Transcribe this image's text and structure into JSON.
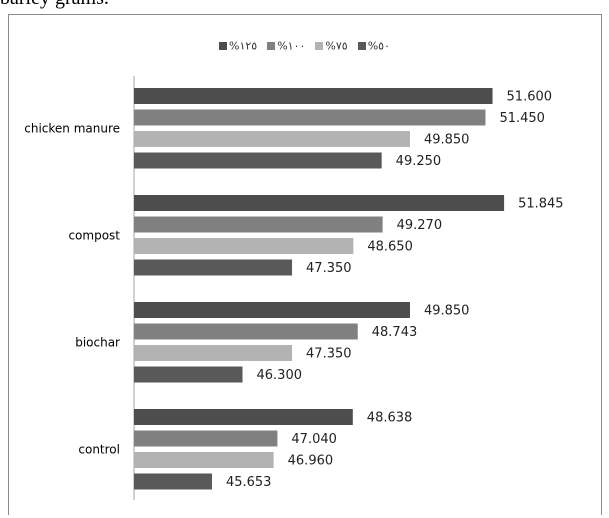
{
  "caption": "barley grams.",
  "chart_data": {
    "type": "bar",
    "orientation": "horizontal",
    "categories": [
      "chicken manure",
      "compost",
      "biochar",
      "control"
    ],
    "series": [
      {
        "name": "%١٢٥",
        "color": "#4d4d4d",
        "values": [
          51.6,
          51.845,
          49.85,
          48.638
        ],
        "labels": [
          "51.600",
          "51.845",
          "49.850",
          "48.638"
        ]
      },
      {
        "name": "%١٠٠",
        "color": "#808080",
        "values": [
          51.45,
          49.27,
          48.743,
          47.04
        ],
        "labels": [
          "51.450",
          "49.270",
          "48.743",
          "47.040"
        ]
      },
      {
        "name": "%٧٥",
        "color": "#b3b3b3",
        "values": [
          49.85,
          48.65,
          47.35,
          46.96
        ],
        "labels": [
          "49.850",
          "48.650",
          "47.350",
          "46.960"
        ]
      },
      {
        "name": "%٥٠",
        "color": "#595959",
        "values": [
          49.25,
          47.35,
          46.3,
          45.653
        ],
        "labels": [
          "49.250",
          "47.350",
          "46.300",
          "45.653"
        ]
      }
    ],
    "xlim": [
      44,
      52.5
    ],
    "legend_position": "top",
    "grid": false,
    "data_labels": true
  }
}
